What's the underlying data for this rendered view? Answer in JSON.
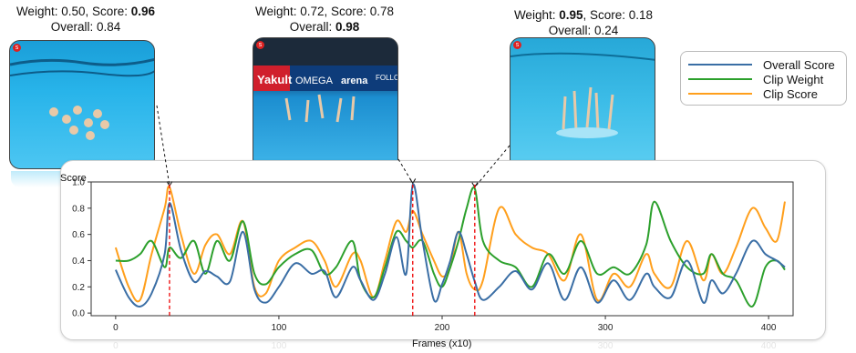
{
  "captions": [
    {
      "prefix": "Weight: 0.50, Score: ",
      "bold1": "",
      "mid": "",
      "bold2": "0.96",
      "line2_prefix": "Overall: 0.84",
      "line2_bold": ""
    },
    {
      "prefix": "Weight: 0.72, Score: 0.78",
      "bold1": "",
      "mid": "",
      "bold2": "",
      "line2_prefix": "Overall: ",
      "line2_bold": "0.98"
    },
    {
      "prefix": "Weight: ",
      "bold1": "0.95",
      "mid": ", Score: 0.18",
      "bold2": "",
      "line2_prefix": "Overall: 0.24",
      "line2_bold": ""
    }
  ],
  "legend": {
    "items": [
      {
        "label": "Overall Score",
        "color": "#3a6ea5"
      },
      {
        "label": "Clip Weight",
        "color": "#2ca02c"
      },
      {
        "label": "Clip Score",
        "color": "#ff9f1c"
      }
    ]
  },
  "thumb_icon": "s",
  "chart_data": {
    "type": "line",
    "ylabel": "Score",
    "xlabel": "Frames (x10)",
    "xlim": [
      -15,
      415
    ],
    "ylim": [
      -0.02,
      1.0
    ],
    "xticks": [
      0,
      100,
      200,
      300,
      400
    ],
    "yticks": [
      0.0,
      0.2,
      0.4,
      0.6,
      0.8,
      1.0
    ],
    "ytick_labels": [
      "0.0",
      "0.2",
      "0.4",
      "0.6",
      "0.8",
      "1.0"
    ],
    "markers": [
      33,
      182,
      220
    ],
    "series": [
      {
        "name": "Overall Score",
        "color": "#3a6ea5",
        "x": [
          0,
          8,
          15,
          22,
          30,
          33,
          40,
          48,
          55,
          62,
          70,
          78,
          85,
          92,
          100,
          110,
          120,
          128,
          135,
          145,
          150,
          158,
          165,
          172,
          178,
          182,
          188,
          195,
          200,
          205,
          210,
          215,
          220,
          225,
          235,
          245,
          255,
          265,
          275,
          285,
          295,
          305,
          315,
          325,
          330,
          340,
          350,
          360,
          365,
          372,
          380,
          390,
          398,
          405,
          410
        ],
        "y": [
          0.33,
          0.12,
          0.05,
          0.15,
          0.45,
          0.84,
          0.48,
          0.24,
          0.32,
          0.28,
          0.24,
          0.62,
          0.18,
          0.08,
          0.2,
          0.38,
          0.3,
          0.32,
          0.12,
          0.35,
          0.25,
          0.1,
          0.3,
          0.58,
          0.3,
          0.98,
          0.55,
          0.1,
          0.22,
          0.4,
          0.62,
          0.45,
          0.24,
          0.1,
          0.2,
          0.32,
          0.18,
          0.38,
          0.1,
          0.35,
          0.08,
          0.25,
          0.1,
          0.3,
          0.2,
          0.12,
          0.4,
          0.08,
          0.25,
          0.15,
          0.3,
          0.55,
          0.45,
          0.4,
          0.35
        ]
      },
      {
        "name": "Clip Weight",
        "color": "#2ca02c",
        "x": [
          0,
          8,
          15,
          22,
          30,
          33,
          40,
          48,
          55,
          62,
          70,
          78,
          85,
          92,
          100,
          110,
          120,
          128,
          135,
          145,
          150,
          158,
          165,
          172,
          178,
          182,
          188,
          195,
          200,
          205,
          210,
          215,
          220,
          225,
          235,
          245,
          255,
          265,
          275,
          285,
          295,
          305,
          315,
          325,
          330,
          340,
          350,
          360,
          365,
          372,
          380,
          390,
          398,
          405,
          410
        ],
        "y": [
          0.4,
          0.4,
          0.45,
          0.55,
          0.35,
          0.5,
          0.42,
          0.55,
          0.3,
          0.55,
          0.4,
          0.7,
          0.3,
          0.22,
          0.35,
          0.45,
          0.48,
          0.3,
          0.35,
          0.55,
          0.25,
          0.12,
          0.35,
          0.62,
          0.55,
          0.5,
          0.55,
          0.3,
          0.2,
          0.35,
          0.55,
          0.8,
          0.95,
          0.55,
          0.4,
          0.35,
          0.2,
          0.45,
          0.3,
          0.55,
          0.3,
          0.35,
          0.3,
          0.52,
          0.85,
          0.55,
          0.35,
          0.3,
          0.45,
          0.3,
          0.25,
          0.05,
          0.35,
          0.4,
          0.33
        ]
      },
      {
        "name": "Clip Score",
        "color": "#ff9f1c",
        "x": [
          0,
          8,
          15,
          22,
          30,
          33,
          40,
          48,
          55,
          62,
          70,
          78,
          85,
          92,
          100,
          110,
          120,
          128,
          135,
          145,
          150,
          158,
          165,
          172,
          178,
          182,
          188,
          195,
          200,
          205,
          210,
          215,
          220,
          225,
          235,
          245,
          255,
          265,
          275,
          285,
          295,
          305,
          315,
          325,
          330,
          340,
          350,
          360,
          365,
          372,
          380,
          390,
          398,
          405,
          410
        ],
        "y": [
          0.5,
          0.2,
          0.1,
          0.45,
          0.8,
          0.96,
          0.6,
          0.3,
          0.52,
          0.6,
          0.45,
          0.7,
          0.2,
          0.15,
          0.4,
          0.5,
          0.55,
          0.4,
          0.2,
          0.45,
          0.4,
          0.12,
          0.4,
          0.7,
          0.62,
          0.78,
          0.6,
          0.4,
          0.28,
          0.35,
          0.62,
          0.3,
          0.18,
          0.25,
          0.8,
          0.6,
          0.5,
          0.45,
          0.25,
          0.6,
          0.1,
          0.3,
          0.2,
          0.45,
          0.3,
          0.2,
          0.55,
          0.25,
          0.45,
          0.3,
          0.5,
          0.8,
          0.65,
          0.55,
          0.85
        ]
      }
    ]
  }
}
